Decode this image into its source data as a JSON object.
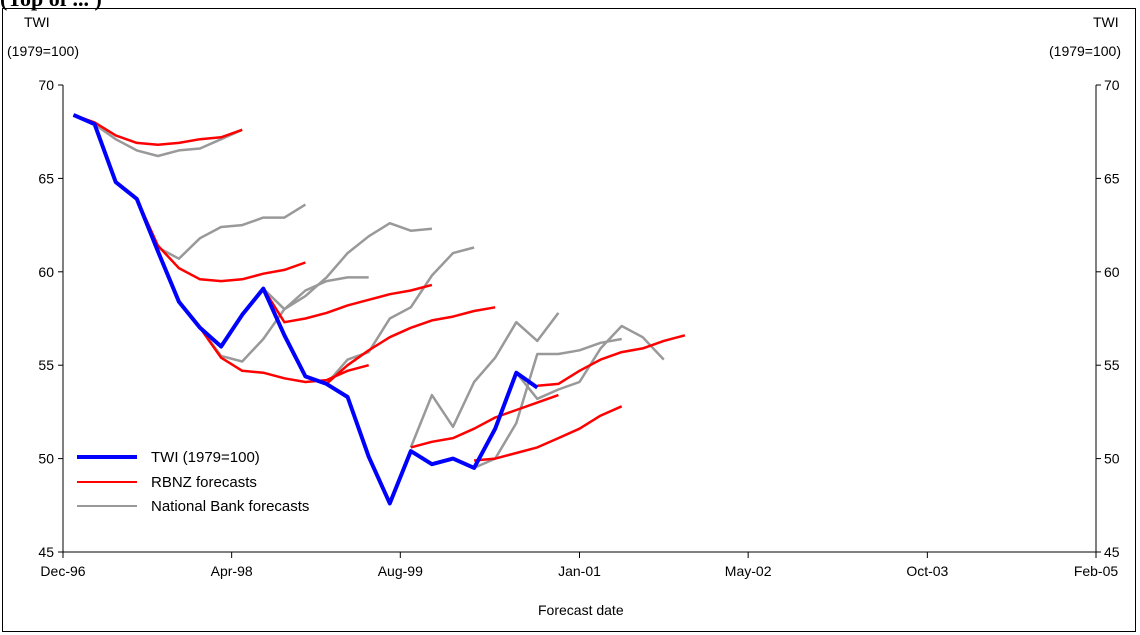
{
  "page_title": "(Top of ... )",
  "chart_data": {
    "type": "line",
    "xlabel": "Forecast date",
    "ylabel_left": [
      "TWI",
      "(1979=100)"
    ],
    "ylabel_right": [
      "TWI",
      "(1979=100)"
    ],
    "ylim": [
      45,
      70
    ],
    "yticks": [
      45,
      50,
      55,
      60,
      65,
      70
    ],
    "x_tick_labels": [
      "Dec-96",
      "Apr-98",
      "Aug-99",
      "Jan-01",
      "May-02",
      "Oct-03",
      "Feb-05"
    ],
    "x_tick_index": [
      0,
      16,
      32,
      49,
      65,
      82,
      98
    ],
    "legend": {
      "position": "bottom-left",
      "entries": [
        "TWI (1979=100)",
        "RBNZ forecasts",
        "National Bank forecasts"
      ]
    },
    "colors": {
      "twi": "#0000ff",
      "rbnz": "#ff0000",
      "national_bank": "#999999"
    },
    "twi_series": {
      "name": "TWI (1979=100)",
      "points": [
        [
          1,
          68.4
        ],
        [
          3,
          67.9
        ],
        [
          5,
          64.8
        ],
        [
          7,
          63.9
        ],
        [
          9,
          61.1
        ],
        [
          11,
          58.4
        ],
        [
          13,
          57.0
        ],
        [
          15,
          56.0
        ],
        [
          17,
          57.7
        ],
        [
          19,
          59.1
        ],
        [
          21,
          56.6
        ],
        [
          23,
          54.4
        ],
        [
          25,
          54.0
        ],
        [
          27,
          53.3
        ],
        [
          29,
          50.1
        ],
        [
          31,
          47.6
        ],
        [
          33,
          50.4
        ],
        [
          35,
          49.7
        ],
        [
          37,
          50.0
        ],
        [
          39,
          49.5
        ],
        [
          41,
          51.6
        ],
        [
          43,
          54.6
        ],
        [
          45,
          53.8
        ]
      ]
    },
    "rbnz_forecasts": [
      [
        [
          1,
          68.4
        ],
        [
          3,
          68.0
        ],
        [
          5,
          67.3
        ],
        [
          7,
          66.9
        ],
        [
          9,
          66.8
        ],
        [
          11,
          66.9
        ],
        [
          13,
          67.1
        ],
        [
          15,
          67.2
        ],
        [
          17,
          67.6
        ]
      ],
      [
        [
          7,
          63.9
        ],
        [
          9,
          61.4
        ],
        [
          11,
          60.2
        ],
        [
          13,
          59.6
        ],
        [
          15,
          59.5
        ],
        [
          17,
          59.6
        ],
        [
          19,
          59.9
        ],
        [
          21,
          60.1
        ],
        [
          23,
          60.5
        ]
      ],
      [
        [
          13,
          57.0
        ],
        [
          15,
          55.4
        ],
        [
          17,
          54.7
        ],
        [
          19,
          54.6
        ],
        [
          21,
          54.3
        ],
        [
          23,
          54.1
        ],
        [
          25,
          54.2
        ],
        [
          27,
          54.7
        ],
        [
          29,
          55.0
        ]
      ],
      [
        [
          19,
          59.1
        ],
        [
          21,
          57.3
        ],
        [
          23,
          57.5
        ],
        [
          25,
          57.8
        ],
        [
          27,
          58.2
        ],
        [
          29,
          58.5
        ],
        [
          31,
          58.8
        ],
        [
          33,
          59.0
        ],
        [
          35,
          59.3
        ]
      ],
      [
        [
          25,
          54.0
        ],
        [
          27,
          55.0
        ],
        [
          29,
          55.8
        ],
        [
          31,
          56.5
        ],
        [
          33,
          57.0
        ],
        [
          35,
          57.4
        ],
        [
          37,
          57.6
        ],
        [
          39,
          57.9
        ],
        [
          41,
          58.1
        ]
      ],
      [
        [
          33,
          50.6
        ],
        [
          35,
          50.9
        ],
        [
          37,
          51.1
        ],
        [
          39,
          51.6
        ],
        [
          41,
          52.2
        ],
        [
          43,
          52.6
        ],
        [
          45,
          53.0
        ],
        [
          47,
          53.4
        ]
      ],
      [
        [
          39,
          49.9
        ],
        [
          41,
          50.0
        ],
        [
          43,
          50.3
        ],
        [
          45,
          50.6
        ],
        [
          47,
          51.1
        ],
        [
          49,
          51.6
        ],
        [
          51,
          52.3
        ],
        [
          53,
          52.8
        ]
      ],
      [
        [
          45,
          53.9
        ],
        [
          47,
          54.0
        ],
        [
          49,
          54.7
        ],
        [
          51,
          55.3
        ],
        [
          53,
          55.7
        ],
        [
          55,
          55.9
        ],
        [
          57,
          56.3
        ],
        [
          59,
          56.6
        ]
      ]
    ],
    "national_bank_forecasts": [
      [
        [
          1,
          68.4
        ],
        [
          3,
          67.9
        ],
        [
          5,
          67.1
        ],
        [
          7,
          66.5
        ],
        [
          9,
          66.2
        ],
        [
          11,
          66.5
        ],
        [
          13,
          66.6
        ],
        [
          15,
          67.1
        ],
        [
          17,
          67.6
        ]
      ],
      [
        [
          7,
          63.9
        ],
        [
          9,
          61.3
        ],
        [
          11,
          60.7
        ],
        [
          13,
          61.8
        ],
        [
          15,
          62.4
        ],
        [
          17,
          62.5
        ],
        [
          19,
          62.9
        ],
        [
          21,
          62.9
        ],
        [
          23,
          63.6
        ]
      ],
      [
        [
          13,
          57.0
        ],
        [
          15,
          55.5
        ],
        [
          17,
          55.2
        ],
        [
          19,
          56.4
        ],
        [
          21,
          58.0
        ],
        [
          23,
          59.0
        ],
        [
          25,
          59.5
        ],
        [
          27,
          59.7
        ],
        [
          29,
          59.7
        ]
      ],
      [
        [
          19,
          59.1
        ],
        [
          21,
          58.0
        ],
        [
          23,
          58.7
        ],
        [
          25,
          59.7
        ],
        [
          27,
          61.0
        ],
        [
          29,
          61.9
        ],
        [
          31,
          62.6
        ],
        [
          33,
          62.2
        ],
        [
          35,
          62.3
        ]
      ],
      [
        [
          25,
          54.0
        ],
        [
          27,
          55.3
        ],
        [
          29,
          55.7
        ],
        [
          31,
          57.5
        ],
        [
          33,
          58.1
        ],
        [
          35,
          59.8
        ],
        [
          37,
          61.0
        ],
        [
          39,
          61.3
        ]
      ],
      [
        [
          33,
          50.6
        ],
        [
          35,
          53.4
        ],
        [
          37,
          51.7
        ],
        [
          39,
          54.1
        ],
        [
          41,
          55.4
        ],
        [
          43,
          57.3
        ],
        [
          45,
          56.3
        ],
        [
          47,
          57.8
        ]
      ],
      [
        [
          39,
          49.5
        ],
        [
          41,
          50.0
        ],
        [
          43,
          51.9
        ],
        [
          45,
          55.6
        ],
        [
          47,
          55.6
        ],
        [
          49,
          55.8
        ],
        [
          51,
          56.2
        ],
        [
          53,
          56.4
        ]
      ],
      [
        [
          43,
          54.6
        ],
        [
          45,
          53.2
        ],
        [
          47,
          53.7
        ],
        [
          49,
          54.1
        ],
        [
          51,
          55.9
        ],
        [
          53,
          57.1
        ],
        [
          55,
          56.5
        ],
        [
          57,
          55.3
        ]
      ]
    ]
  }
}
